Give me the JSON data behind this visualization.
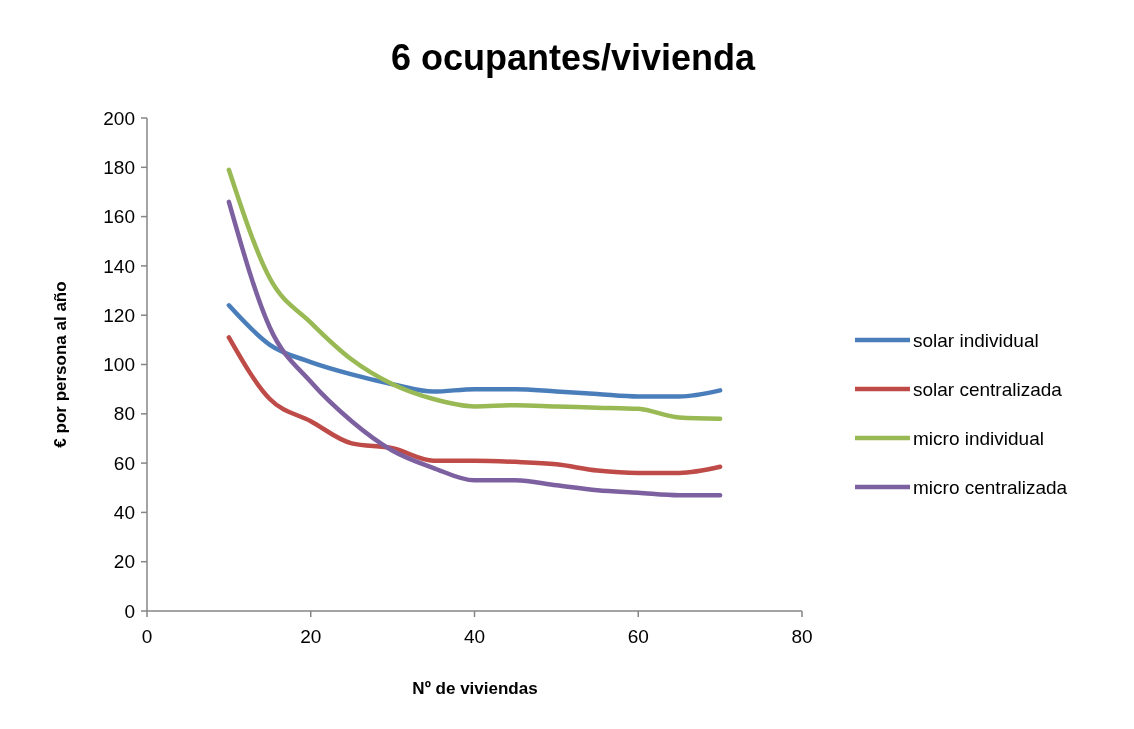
{
  "chart_data": {
    "type": "line",
    "title": "6 ocupantes/vivienda",
    "xlabel": "Nº de viviendas",
    "ylabel": "€ por persona al año",
    "x": [
      10,
      15,
      20,
      25,
      30,
      35,
      40,
      45,
      50,
      55,
      60,
      65,
      70
    ],
    "xlim": [
      0,
      80
    ],
    "xticks": [
      0,
      20,
      40,
      60,
      80
    ],
    "ylim": [
      0,
      200
    ],
    "yticks": [
      0,
      20,
      40,
      60,
      80,
      100,
      120,
      140,
      160,
      180,
      200
    ],
    "grid": false,
    "legend": "right",
    "marker": "none",
    "line_style": "solid",
    "series": [
      {
        "name": "solar individual",
        "color": "#4a7ebb",
        "values": [
          124,
          108,
          101,
          96,
          92,
          89,
          90,
          90,
          89,
          88,
          87,
          87,
          89.5
        ]
      },
      {
        "name": "solar centralizada",
        "color": "#be4b48",
        "values": [
          111,
          86,
          77,
          68,
          66,
          61,
          61,
          60.5,
          59.5,
          57,
          56,
          56,
          58.5
        ]
      },
      {
        "name": "micro individual",
        "color": "#98b954",
        "values": [
          179,
          135,
          117,
          102,
          92,
          86,
          83,
          83.5,
          83,
          82.5,
          82,
          78.5,
          78
        ]
      },
      {
        "name": "micro centralizada",
        "color": "#7d60a0",
        "values": [
          166,
          115,
          93,
          77,
          65,
          58,
          53,
          53,
          51,
          49,
          48,
          47,
          47
        ]
      }
    ]
  }
}
